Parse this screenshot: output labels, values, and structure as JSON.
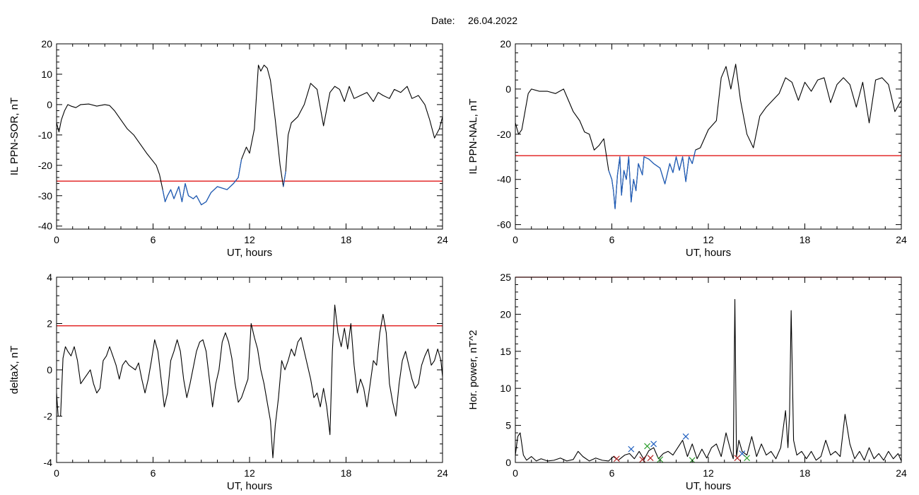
{
  "header": {
    "date_label": "Date:",
    "date_value": "26.04.2022"
  },
  "chart_data": [
    {
      "type": "line",
      "id": "sor",
      "xlabel": "UT, hours",
      "ylabel": "IL PPN-SOR, nT",
      "xlim": [
        0,
        24
      ],
      "ylim": [
        -41,
        20
      ],
      "xticks": [
        0,
        6,
        12,
        18,
        24
      ],
      "yticks": [
        -40,
        -30,
        -20,
        -10,
        0,
        10,
        20
      ],
      "threshold": -25.2,
      "threshold_color": "#dd0000",
      "line_color": "#000000",
      "highlight_color": "#1f5fbf",
      "highlight_ranges": [
        [
          6.6,
          11.5
        ],
        [
          14.0,
          14.3
        ]
      ],
      "series": [
        {
          "x": [
            0,
            0.15,
            0.3,
            0.5,
            0.7,
            0.9,
            1.2,
            1.5,
            2.0,
            2.5,
            3.0,
            3.3,
            3.6,
            4.0,
            4.4,
            4.8,
            5.2,
            5.6,
            5.9,
            6.2,
            6.4,
            6.6,
            6.75,
            6.9,
            7.1,
            7.3,
            7.6,
            7.8,
            8.0,
            8.2,
            8.5,
            8.7,
            9.0,
            9.3,
            9.6,
            9.8,
            10.0,
            10.3,
            10.6,
            11.0,
            11.3,
            11.5,
            11.8,
            12.0,
            12.3,
            12.55,
            12.7,
            12.9,
            13.1,
            13.3,
            13.6,
            13.9,
            14.1,
            14.25,
            14.4,
            14.6,
            15.0,
            15.4,
            15.8,
            16.2,
            16.6,
            17.0,
            17.3,
            17.6,
            17.9,
            18.2,
            18.5,
            18.9,
            19.3,
            19.7,
            20.0,
            20.3,
            20.7,
            21.0,
            21.4,
            21.8,
            22.1,
            22.5,
            22.9,
            23.2,
            23.5,
            23.8,
            24.0
          ],
          "y": [
            -6,
            -9,
            -5,
            -2,
            0,
            -0.5,
            -1,
            0,
            0.2,
            -0.5,
            0,
            -0.3,
            -2,
            -5,
            -8,
            -10,
            -13,
            -16,
            -18,
            -20,
            -23,
            -28,
            -32,
            -30,
            -28,
            -31,
            -27,
            -32,
            -26,
            -30,
            -31,
            -30,
            -33,
            -32,
            -29,
            -28,
            -27,
            -27.5,
            -28,
            -26,
            -24,
            -18,
            -14,
            -16,
            -8,
            13,
            11,
            13,
            12,
            8,
            -5,
            -20,
            -27,
            -22,
            -10,
            -6,
            -4,
            0,
            7,
            5,
            -7,
            4,
            6,
            5,
            1,
            6,
            2,
            3,
            4,
            1,
            4,
            3,
            2,
            5,
            4,
            6,
            2,
            3,
            0,
            -5,
            -11,
            -8,
            -4
          ]
        }
      ]
    },
    {
      "type": "line",
      "id": "nal",
      "xlabel": "UT, hours",
      "ylabel": "IL PPN-NAL, nT",
      "xlim": [
        0,
        24
      ],
      "ylim": [
        -62,
        20
      ],
      "xticks": [
        0,
        6,
        12,
        18,
        24
      ],
      "yticks": [
        -60,
        -40,
        -20,
        0,
        20
      ],
      "threshold": -29.5,
      "threshold_color": "#dd0000",
      "line_color": "#000000",
      "highlight_color": "#1f5fbf",
      "highlight_ranges": [
        [
          5.8,
          11.2
        ]
      ],
      "series": [
        {
          "x": [
            0,
            0.2,
            0.4,
            0.6,
            0.8,
            1.0,
            1.5,
            2.0,
            2.5,
            3.0,
            3.3,
            3.6,
            4.0,
            4.3,
            4.6,
            4.9,
            5.2,
            5.5,
            5.8,
            6.0,
            6.1,
            6.2,
            6.35,
            6.5,
            6.6,
            6.75,
            6.9,
            7.05,
            7.2,
            7.35,
            7.5,
            7.65,
            7.8,
            7.9,
            8.0,
            8.3,
            8.6,
            9.0,
            9.3,
            9.6,
            9.8,
            10.0,
            10.2,
            10.4,
            10.6,
            10.8,
            11.0,
            11.2,
            11.5,
            12.0,
            12.5,
            12.8,
            13.1,
            13.4,
            13.7,
            14.0,
            14.4,
            14.8,
            15.2,
            15.6,
            16.0,
            16.4,
            16.8,
            17.2,
            17.6,
            18.0,
            18.4,
            18.8,
            19.2,
            19.6,
            20.0,
            20.4,
            20.8,
            21.2,
            21.6,
            22.0,
            22.4,
            22.8,
            23.2,
            23.6,
            24.0
          ],
          "y": [
            -15,
            -20,
            -18,
            -10,
            -2,
            0,
            -1,
            -1,
            -2,
            0,
            -5,
            -10,
            -14,
            -19,
            -20,
            -27,
            -25,
            -22,
            -36,
            -40,
            -45,
            -53,
            -38,
            -30,
            -47,
            -36,
            -40,
            -30,
            -50,
            -40,
            -45,
            -33,
            -36,
            -38,
            -30,
            -31,
            -33,
            -35,
            -42,
            -33,
            -37,
            -30,
            -36,
            -30,
            -41,
            -30,
            -33,
            -27,
            -26,
            -18,
            -14,
            5,
            10,
            0,
            11,
            -5,
            -20,
            -26,
            -12,
            -8,
            -5,
            -2,
            5,
            3,
            -5,
            3,
            -1,
            4,
            5,
            -6,
            2,
            5,
            2,
            -8,
            3,
            -15,
            4,
            5,
            2,
            -10,
            -5
          ]
        }
      ]
    },
    {
      "type": "line",
      "id": "deltax",
      "xlabel": "UT, hours",
      "ylabel": "deltaX, nT",
      "xlim": [
        0,
        24
      ],
      "ylim": [
        -4,
        4
      ],
      "xticks": [
        0,
        6,
        12,
        18,
        24
      ],
      "yticks": [
        -4,
        -2,
        0,
        2,
        4
      ],
      "threshold": 1.9,
      "threshold_color": "#dd0000",
      "line_color": "#000000",
      "series": [
        {
          "x": [
            0,
            0.1,
            0.25,
            0.4,
            0.55,
            0.7,
            0.9,
            1.1,
            1.3,
            1.5,
            1.7,
            1.9,
            2.1,
            2.3,
            2.5,
            2.7,
            2.9,
            3.1,
            3.3,
            3.5,
            3.7,
            3.9,
            4.1,
            4.3,
            4.5,
            4.7,
            4.9,
            5.1,
            5.3,
            5.5,
            5.7,
            5.9,
            6.1,
            6.3,
            6.5,
            6.7,
            6.9,
            7.1,
            7.3,
            7.5,
            7.7,
            7.9,
            8.1,
            8.3,
            8.5,
            8.7,
            8.9,
            9.1,
            9.3,
            9.5,
            9.7,
            9.9,
            10.1,
            10.3,
            10.5,
            10.7,
            10.9,
            11.1,
            11.3,
            11.5,
            11.7,
            11.9,
            12.1,
            12.3,
            12.5,
            12.7,
            12.9,
            13.1,
            13.3,
            13.45,
            13.6,
            13.8,
            14.0,
            14.2,
            14.4,
            14.6,
            14.8,
            15.0,
            15.2,
            15.4,
            15.6,
            15.8,
            16.0,
            16.2,
            16.4,
            16.6,
            16.8,
            17.0,
            17.15,
            17.3,
            17.5,
            17.7,
            17.9,
            18.1,
            18.3,
            18.5,
            18.7,
            18.9,
            19.1,
            19.3,
            19.5,
            19.7,
            19.9,
            20.1,
            20.3,
            20.5,
            20.7,
            20.9,
            21.1,
            21.3,
            21.5,
            21.7,
            21.9,
            22.1,
            22.3,
            22.5,
            22.7,
            22.9,
            23.1,
            23.3,
            23.5,
            23.7,
            23.9,
            24.0
          ],
          "y": [
            -1.0,
            -2.0,
            -2.0,
            0.5,
            1.0,
            0.8,
            0.6,
            1.0,
            0.4,
            -0.6,
            -0.4,
            -0.2,
            0.0,
            -0.6,
            -1.0,
            -0.8,
            0.4,
            0.6,
            1.0,
            0.6,
            0.2,
            -0.4,
            0.2,
            0.4,
            0.2,
            0.1,
            0.0,
            0.3,
            -0.4,
            -1.0,
            -0.4,
            0.4,
            1.3,
            0.8,
            -0.4,
            -1.6,
            -1.0,
            0.4,
            0.8,
            1.3,
            0.8,
            -0.4,
            -1.2,
            -0.6,
            0.1,
            0.8,
            1.2,
            1.3,
            0.8,
            -0.4,
            -1.6,
            -0.6,
            0.0,
            1.2,
            1.6,
            1.2,
            0.5,
            -0.6,
            -1.4,
            -1.2,
            -0.8,
            -0.4,
            2.0,
            1.4,
            0.9,
            0.0,
            -0.6,
            -1.4,
            -2.2,
            -3.8,
            -2.4,
            -1.2,
            0.4,
            0.0,
            0.4,
            0.9,
            0.6,
            1.2,
            1.4,
            0.8,
            0.2,
            -0.4,
            -1.2,
            -1.0,
            -1.6,
            -0.8,
            -1.6,
            -2.8,
            0.8,
            2.8,
            1.6,
            1.0,
            1.8,
            0.9,
            2.0,
            0.2,
            -1.0,
            -0.4,
            -0.8,
            -1.6,
            -0.6,
            0.4,
            0.2,
            1.6,
            2.4,
            1.6,
            -0.6,
            -1.4,
            -2.0,
            -0.6,
            0.4,
            0.8,
            0.2,
            -0.4,
            -0.8,
            -0.6,
            0.2,
            0.6,
            0.9,
            0.2,
            0.4,
            0.9,
            0.4,
            -0.3
          ]
        }
      ]
    },
    {
      "type": "line",
      "id": "power",
      "xlabel": "UT, hours",
      "ylabel": "Hor. power, nT^2",
      "xlim": [
        0,
        24
      ],
      "ylim": [
        0,
        25
      ],
      "xticks": [
        0,
        6,
        12,
        18,
        24
      ],
      "yticks": [
        0,
        5,
        10,
        15,
        20,
        25
      ],
      "threshold": 25,
      "threshold_color": "#dd0000",
      "line_color": "#000000",
      "series": [
        {
          "x": [
            0,
            0.15,
            0.3,
            0.5,
            0.7,
            1.0,
            1.3,
            1.6,
            2.0,
            2.4,
            2.8,
            3.2,
            3.6,
            3.9,
            4.2,
            4.6,
            5.0,
            5.4,
            5.8,
            6.1,
            6.4,
            6.8,
            7.1,
            7.4,
            7.7,
            8.0,
            8.3,
            8.6,
            8.9,
            9.2,
            9.5,
            9.8,
            10.1,
            10.4,
            10.7,
            11.0,
            11.3,
            11.6,
            11.9,
            12.2,
            12.5,
            12.8,
            13.1,
            13.4,
            13.55,
            13.65,
            13.75,
            13.9,
            14.1,
            14.4,
            14.7,
            15.0,
            15.3,
            15.6,
            15.9,
            16.2,
            16.5,
            16.8,
            16.95,
            17.05,
            17.15,
            17.3,
            17.5,
            17.8,
            18.1,
            18.4,
            18.7,
            19.0,
            19.3,
            19.6,
            19.9,
            20.2,
            20.5,
            20.8,
            21.1,
            21.4,
            21.7,
            22.0,
            22.3,
            22.6,
            22.9,
            23.2,
            23.5,
            23.8,
            24.0
          ],
          "y": [
            1.0,
            3.5,
            4.0,
            1.0,
            0.3,
            0.8,
            0.2,
            0.5,
            0.2,
            0.3,
            0.6,
            0.2,
            0.4,
            1.5,
            0.8,
            0.2,
            0.6,
            0.3,
            0.2,
            0.8,
            0.3,
            1.0,
            1.2,
            0.5,
            1.5,
            0.4,
            1.6,
            2.0,
            0.5,
            1.2,
            1.5,
            1.0,
            2.0,
            3.0,
            0.8,
            2.5,
            0.5,
            1.8,
            0.6,
            2.0,
            2.5,
            0.8,
            4.0,
            1.5,
            0.5,
            22.0,
            0.8,
            3.0,
            1.5,
            1.0,
            3.5,
            0.8,
            2.5,
            1.0,
            1.5,
            0.5,
            2.0,
            7.0,
            2.0,
            6.5,
            20.5,
            3.0,
            1.0,
            1.5,
            0.5,
            1.5,
            0.3,
            0.8,
            3.0,
            1.0,
            1.5,
            0.8,
            6.5,
            2.5,
            0.5,
            1.5,
            0.3,
            2.0,
            0.5,
            1.2,
            0.3,
            1.5,
            0.5,
            1.2,
            0.2
          ]
        }
      ],
      "markers": [
        {
          "x": 7.2,
          "y": 1.8,
          "symbol": "x",
          "color": "#1f5fbf"
        },
        {
          "x": 8.2,
          "y": 2.2,
          "symbol": "x",
          "color": "#2e9e2e"
        },
        {
          "x": 8.6,
          "y": 2.5,
          "symbol": "x",
          "color": "#1f5fbf"
        },
        {
          "x": 10.6,
          "y": 3.5,
          "symbol": "x",
          "color": "#1f5fbf"
        },
        {
          "x": 14.1,
          "y": 1.2,
          "symbol": "x",
          "color": "#1f5fbf"
        },
        {
          "x": 6.3,
          "y": 0.5,
          "symbol": "x",
          "color": "#b22222"
        },
        {
          "x": 7.9,
          "y": 0.4,
          "symbol": "x",
          "color": "#b22222"
        },
        {
          "x": 8.4,
          "y": 0.6,
          "symbol": "x",
          "color": "#b22222"
        },
        {
          "x": 9.0,
          "y": 0.4,
          "symbol": "x",
          "color": "#2e9e2e"
        },
        {
          "x": 11.0,
          "y": 0.3,
          "symbol": "x",
          "color": "#2e9e2e"
        },
        {
          "x": 13.8,
          "y": 0.6,
          "symbol": "x",
          "color": "#b22222"
        },
        {
          "x": 14.4,
          "y": 0.6,
          "symbol": "x",
          "color": "#2e9e2e"
        }
      ]
    }
  ]
}
